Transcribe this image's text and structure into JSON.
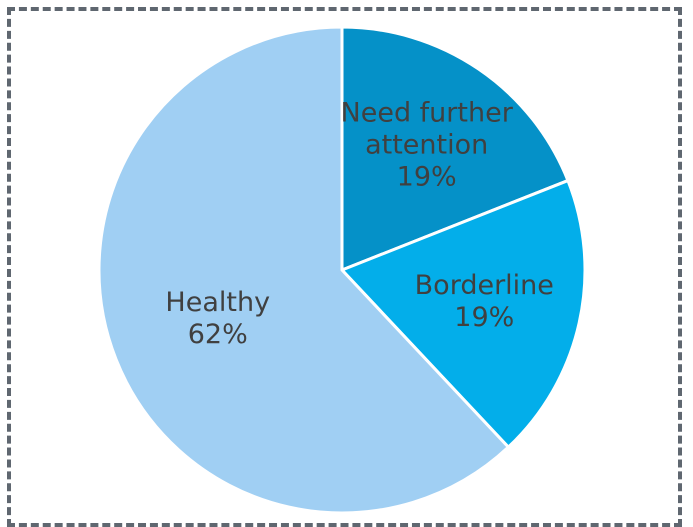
{
  "chart_data": {
    "type": "pie",
    "title": "",
    "slices": [
      {
        "label": "Need further attention",
        "label_lines": [
          "Need further",
          "attention"
        ],
        "percent_label": "19%",
        "value": 19,
        "color": "#0591c8"
      },
      {
        "label": "Borderline",
        "label_lines": [
          "Borderline"
        ],
        "percent_label": "19%",
        "value": 19,
        "color": "#03aeea"
      },
      {
        "label": "Healthy",
        "label_lines": [
          "Healthy"
        ],
        "percent_label": "62%",
        "value": 62,
        "color": "#a0cff3"
      }
    ],
    "legend": "none"
  }
}
